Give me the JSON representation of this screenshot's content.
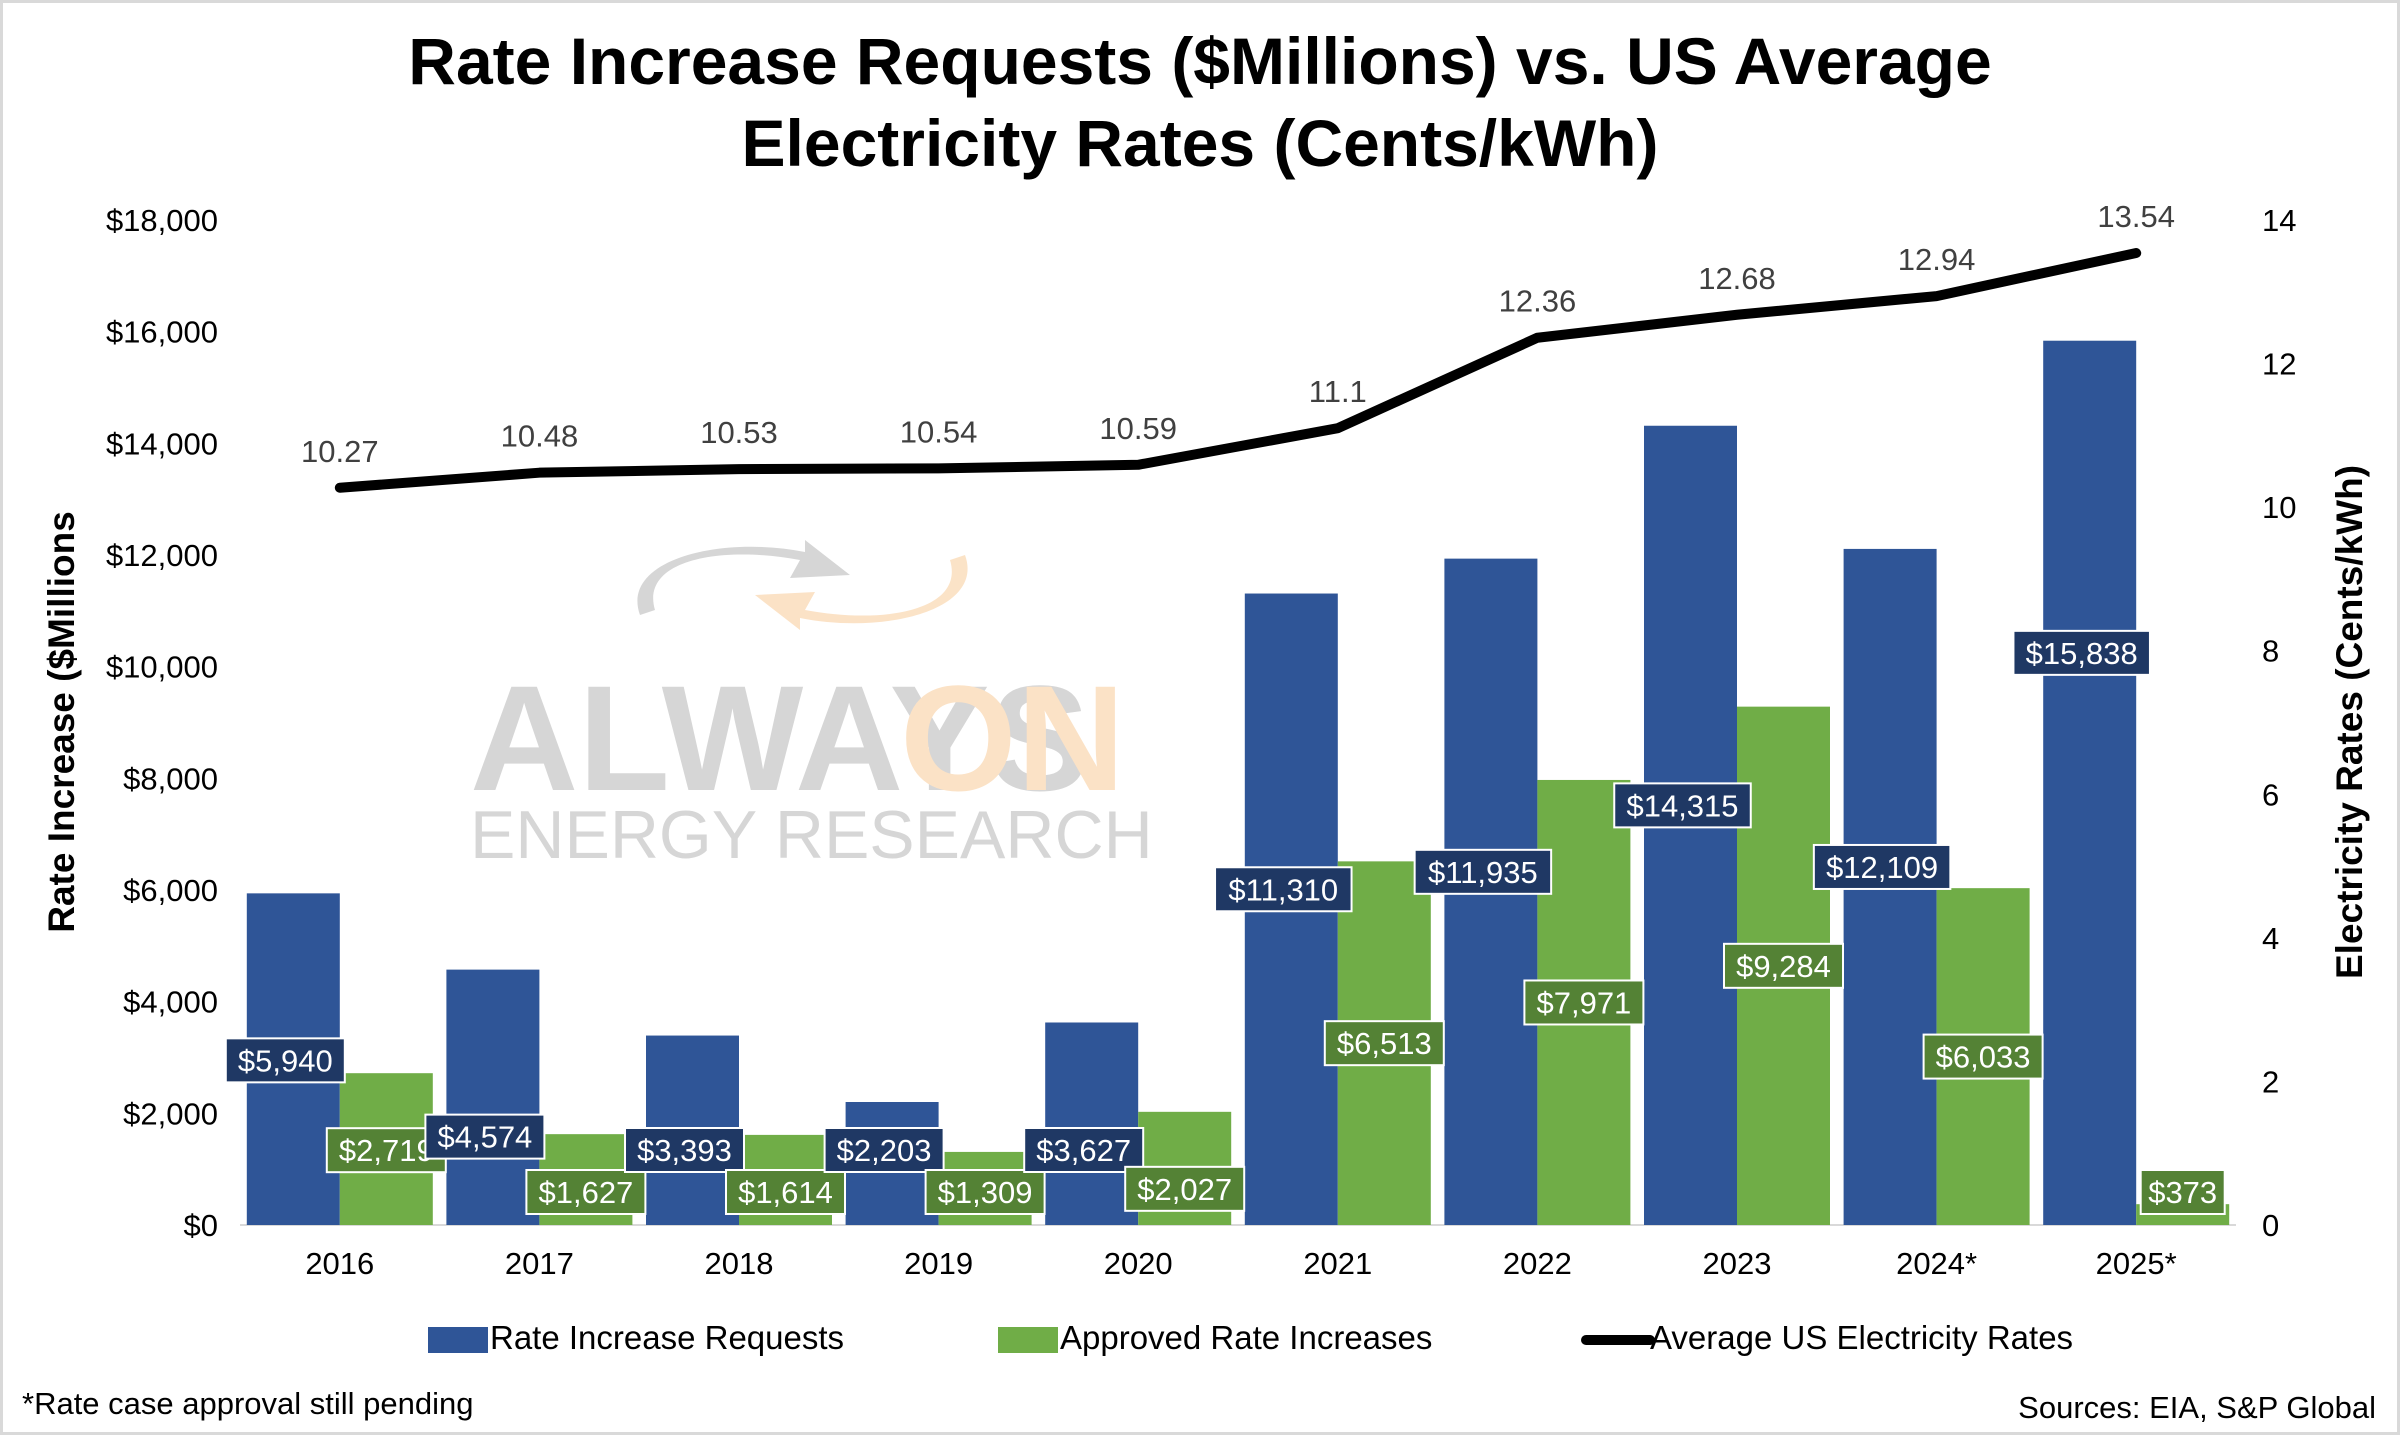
{
  "chart_data": {
    "type": "bar",
    "title_lines": [
      "Rate Increase Requests ($Millions) vs. US Average",
      "Electricity Rates (Cents/kWh)"
    ],
    "categories": [
      "2016",
      "2017",
      "2018",
      "2019",
      "2020",
      "2021",
      "2022",
      "2023",
      "2024*",
      "2025*"
    ],
    "series": [
      {
        "name": "Rate Increase Requests",
        "kind": "bar",
        "axis": "left",
        "color": "#2f5597",
        "values": [
          5940,
          4574,
          3393,
          2203,
          3627,
          11310,
          11935,
          14315,
          12109,
          15838
        ],
        "labels": [
          "$5,940",
          "$4,574",
          "$3,393",
          "$2,203",
          "$3,627",
          "$11,310",
          "$11,935",
          "$14,315",
          "$12,109",
          "$15,838"
        ],
        "label_fill": "#1f3864"
      },
      {
        "name": "Approved Rate Increases",
        "kind": "bar",
        "axis": "left",
        "color": "#70ad47",
        "values": [
          2719,
          1627,
          1614,
          1309,
          2027,
          6513,
          7971,
          9284,
          6033,
          373
        ],
        "labels": [
          "$2,719",
          "$1,627",
          "$1,614",
          "$1,309",
          "$2,027",
          "$6,513",
          "$7,971",
          "$9,284",
          "$6,033",
          "$373"
        ],
        "label_fill": "#548235"
      },
      {
        "name": "Average US Electricity Rates",
        "kind": "line",
        "axis": "right",
        "color": "#000000",
        "values": [
          10.27,
          10.48,
          10.53,
          10.54,
          10.59,
          11.1,
          12.36,
          12.68,
          12.94,
          13.54
        ],
        "labels": [
          "10.27",
          "10.48",
          "10.53",
          "10.54",
          "10.59",
          "11.1",
          "12.36",
          "12.68",
          "12.94",
          "13.54"
        ]
      }
    ],
    "ylabel": "Rate Increase ($Millions",
    "y2label": "Electricity Rates (Cents/kWh)",
    "ylim": [
      0,
      18000
    ],
    "y2lim": [
      0,
      14
    ],
    "yticks": [
      "$0",
      "$2,000",
      "$4,000",
      "$6,000",
      "$8,000",
      "$10,000",
      "$12,000",
      "$14,000",
      "$16,000",
      "$18,000"
    ],
    "y2ticks": [
      "0",
      "2",
      "4",
      "6",
      "8",
      "10",
      "12",
      "14"
    ],
    "legend_position": "bottom",
    "grid": false
  },
  "watermark": {
    "word1": "ALWAYS",
    "word2": "ON",
    "subtitle": "ENERGY RESEARCH",
    "grey": "#d4d4d4",
    "orange": "#fbe1c4"
  },
  "footnote": "*Rate case approval still pending",
  "sources": "Sources: EIA, S&P Global"
}
